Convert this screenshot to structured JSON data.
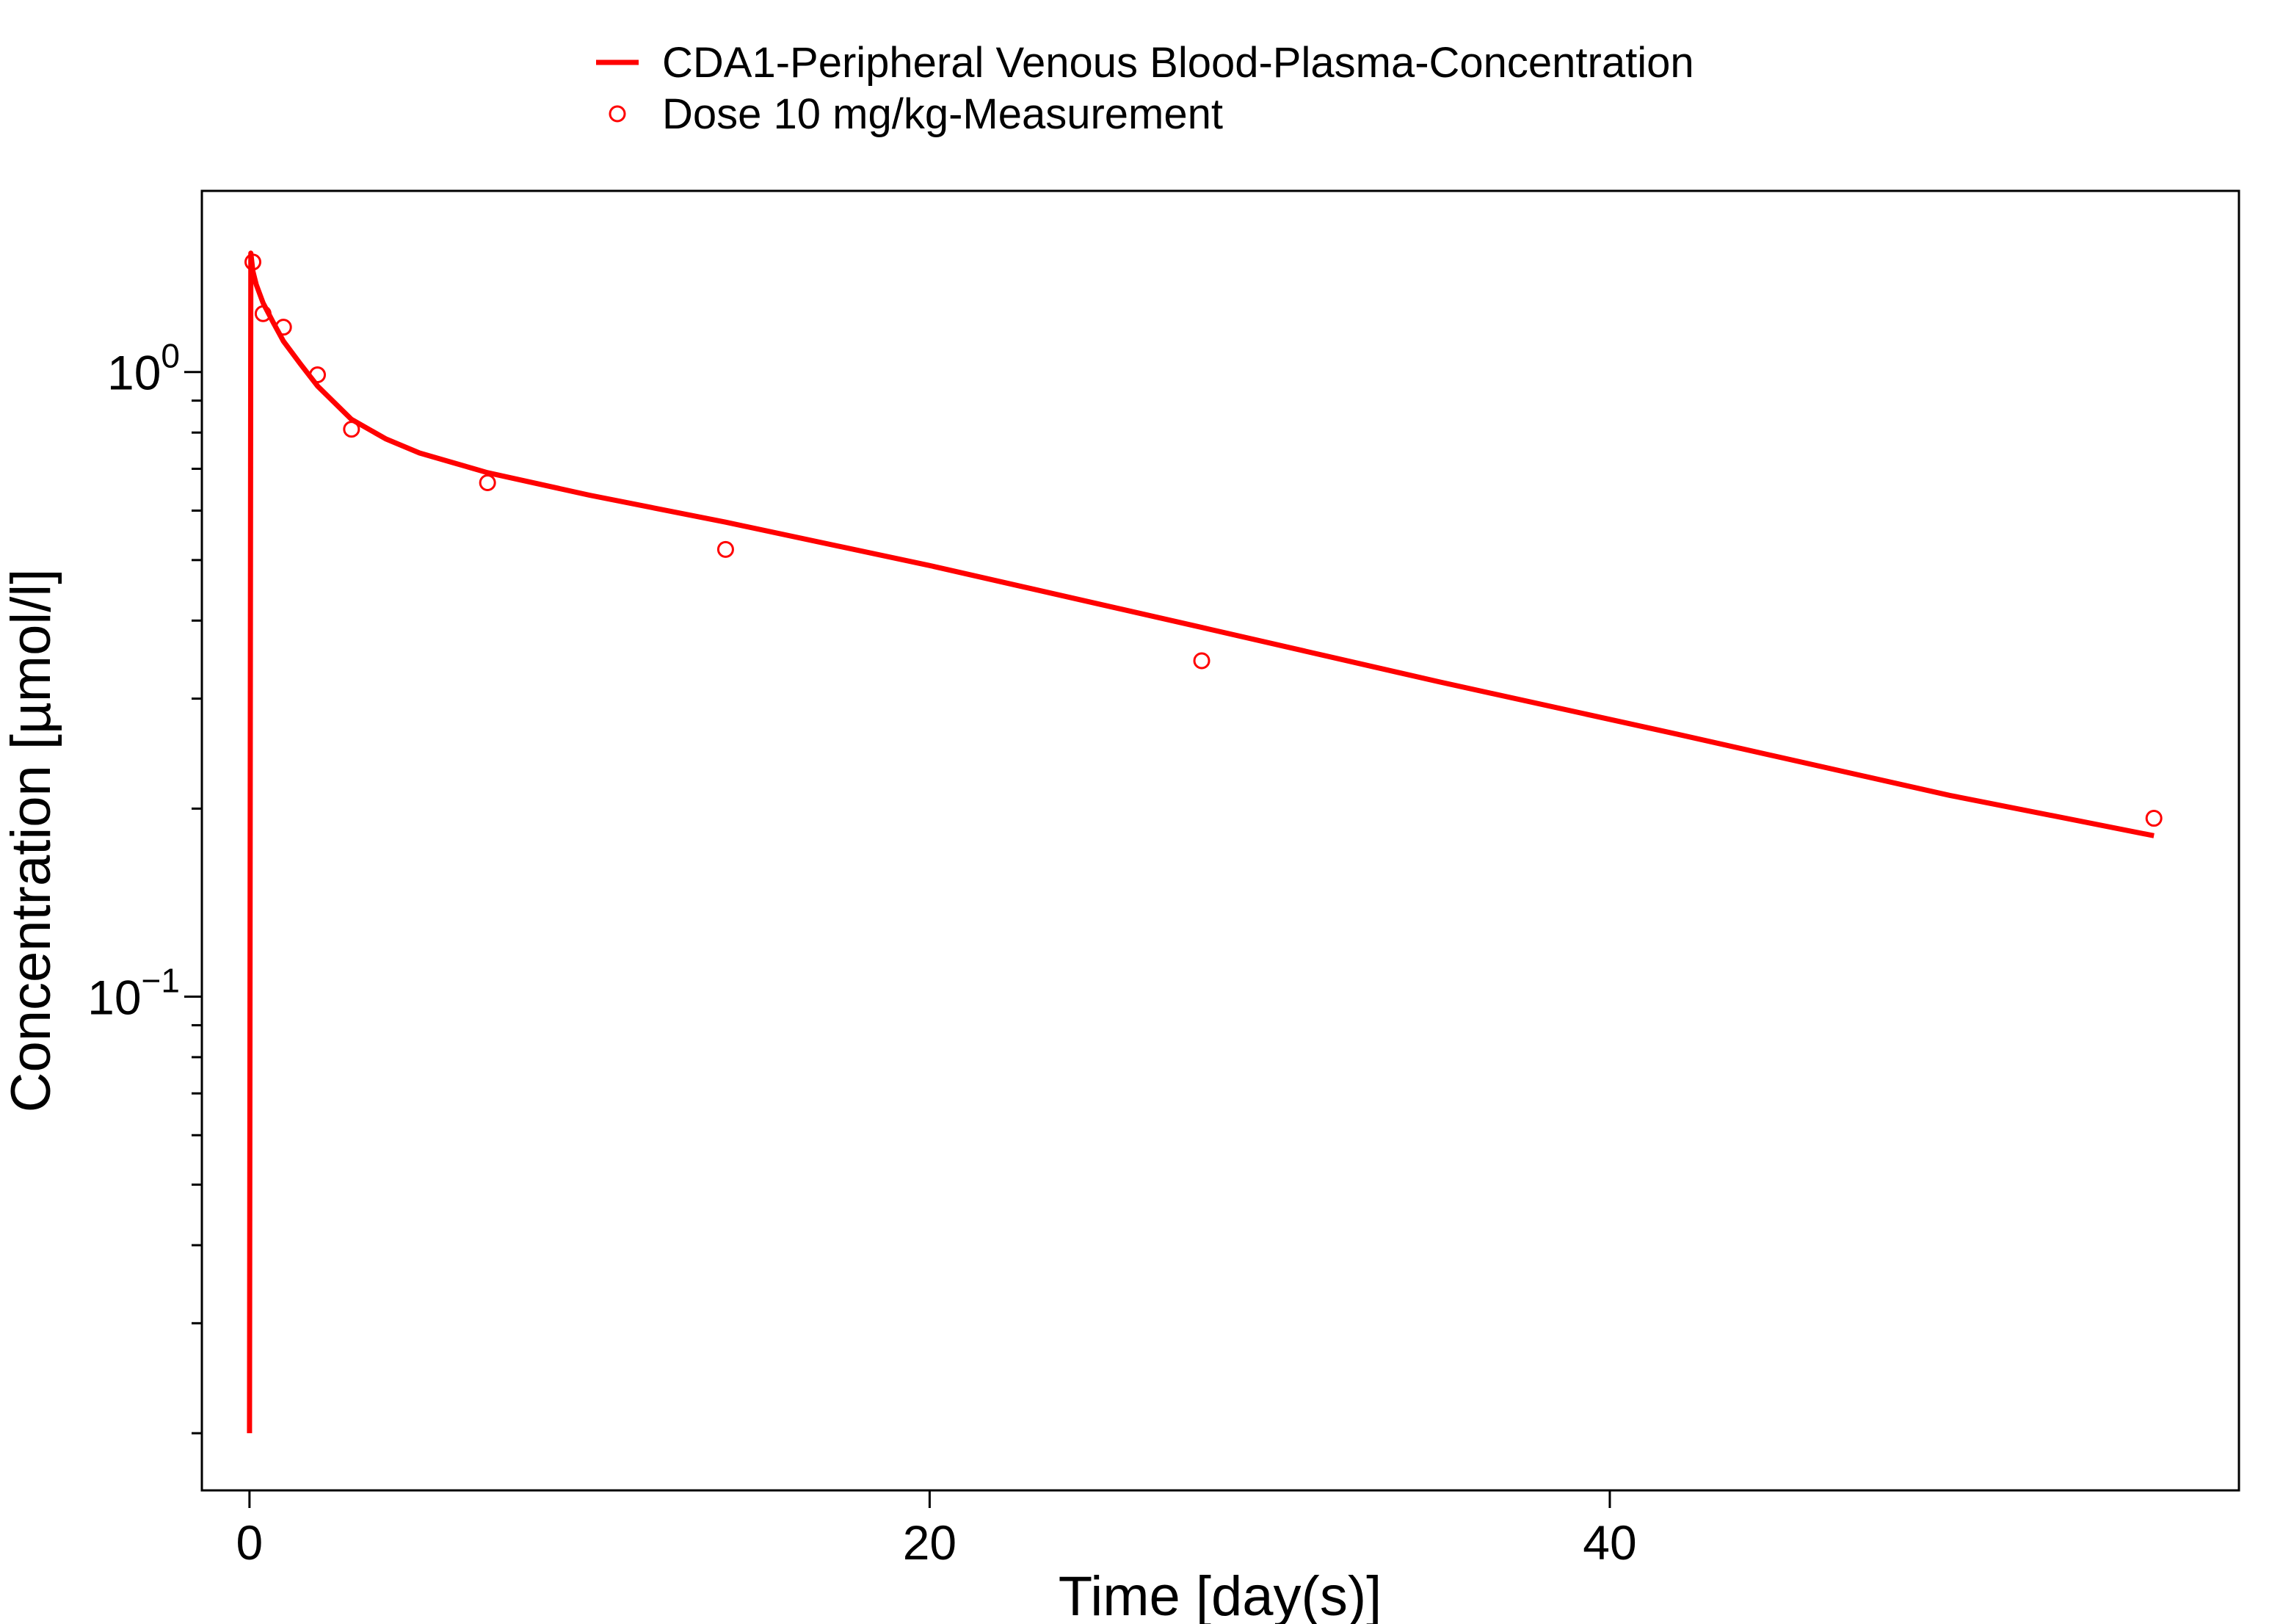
{
  "colors": {
    "series": "#ff0000",
    "axis": "#000000",
    "background": "#ffffff"
  },
  "chart_data": {
    "type": "line",
    "title": "",
    "xlabel": "Time [day(s)]",
    "ylabel": "Concentration [µmol/l]",
    "xlim": [
      -1.4,
      58.5
    ],
    "ylim": [
      0.0162,
      1.95
    ],
    "y_scale": "log",
    "grid": false,
    "legend_position": "top-center",
    "x_ticks": [
      0,
      20,
      40
    ],
    "x_tick_labels": [
      "0",
      "20",
      "40"
    ],
    "y_major_ticks": [
      {
        "value": 1.0,
        "base": "10",
        "exp": "0"
      },
      {
        "value": 0.1,
        "base": "10",
        "exp": "−1"
      }
    ],
    "y_minor_ticks": [
      0.02,
      0.03,
      0.04,
      0.05,
      0.06,
      0.07,
      0.08,
      0.09,
      0.2,
      0.3,
      0.4,
      0.5,
      0.6,
      0.7,
      0.8,
      0.9,
      2
    ],
    "legend": [
      {
        "label": "CDA1-Peripheral Venous Blood-Plasma-Concentration",
        "marker": "line"
      },
      {
        "label": "Dose 10 mg/kg-Measurement",
        "marker": "open-circle"
      }
    ],
    "series": [
      {
        "name": "CDA1-Peripheral Venous Blood-Plasma-Concentration",
        "kind": "line",
        "x": [
          0,
          0.04,
          0.1,
          0.2,
          0.4,
          0.7,
          1.0,
          1.5,
          2.0,
          3.0,
          4.0,
          5.0,
          7.0,
          10.0,
          14.0,
          20.0,
          28.0,
          35.0,
          42.0,
          50.0,
          56.0
        ],
        "y": [
          0.02,
          1.55,
          1.45,
          1.38,
          1.29,
          1.2,
          1.12,
          1.03,
          0.95,
          0.84,
          0.782,
          0.742,
          0.69,
          0.635,
          0.575,
          0.49,
          0.39,
          0.319,
          0.263,
          0.21,
          0.181
        ]
      },
      {
        "name": "Dose 10 mg/kg-Measurement",
        "kind": "scatter",
        "x": [
          0.1,
          0.4,
          1.0,
          2.0,
          3.0,
          7.0,
          14.0,
          28.0,
          56.0
        ],
        "y": [
          1.5,
          1.24,
          1.18,
          0.99,
          0.81,
          0.665,
          0.52,
          0.345,
          0.193
        ]
      }
    ]
  }
}
